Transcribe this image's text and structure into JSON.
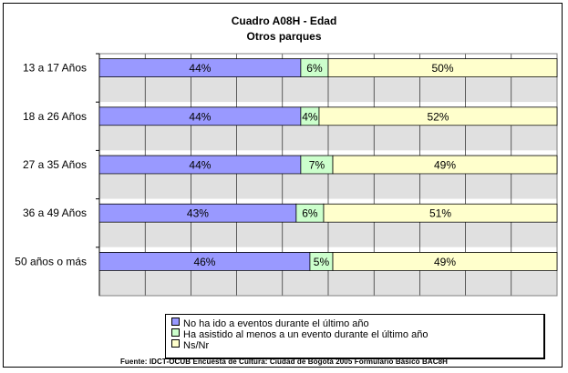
{
  "chart_data": {
    "type": "bar",
    "orientation": "horizontal",
    "stacked": "percent",
    "title": "Cuadro A08H - Edad",
    "subtitle": "Otros parques",
    "categories": [
      "13 a 17 Años",
      "18 a 26 Años",
      "27 a 35 Años",
      "36 a 49 Años",
      "50 años o más"
    ],
    "series": [
      {
        "name": "No ha ido a eventos durante el último año",
        "color": "#9999ff",
        "values": [
          44,
          44,
          44,
          43,
          46
        ],
        "labels": [
          "44%",
          "44%",
          "44%",
          "43%",
          "46%"
        ]
      },
      {
        "name": "Ha asistido al menos a un evento durante el último año",
        "color": "#ccffcc",
        "values": [
          6,
          4,
          7,
          6,
          5
        ],
        "labels": [
          "6%",
          "4%",
          "7%",
          "6%",
          "5%"
        ]
      },
      {
        "name": "Ns/Nr",
        "color": "#ffffcc",
        "values": [
          50,
          52,
          49,
          51,
          49
        ],
        "labels": [
          "50%",
          "52%",
          "49%",
          "51%",
          "49%"
        ]
      }
    ],
    "xlim": [
      0,
      100
    ],
    "grid": true,
    "legend_position": "bottom"
  },
  "source_note": "Fuente: IDCT-OCUB Encuesta de Cultura: Ciudad de Bogotá 2005 Formulario Básico BAC8H"
}
